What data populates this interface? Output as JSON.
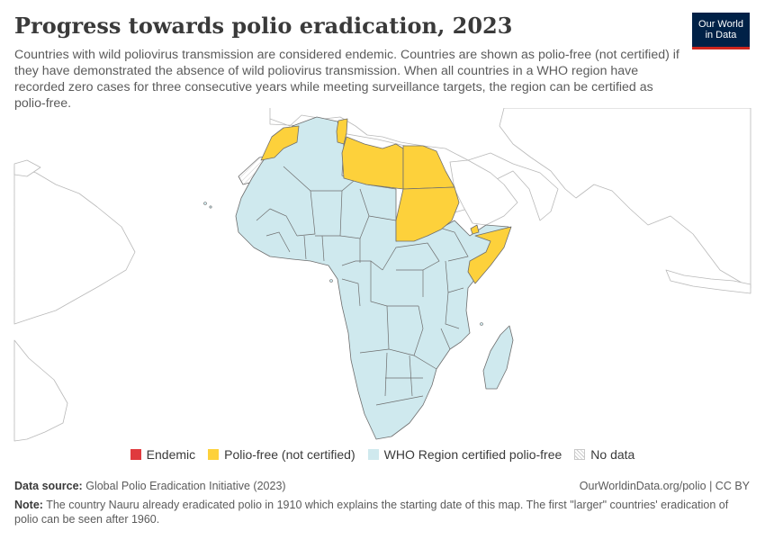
{
  "header": {
    "title": "Progress towards polio eradication, 2023",
    "subtitle": "Countries with wild poliovirus transmission are considered endemic. Countries are shown as polio-free (not certified) if they have demonstrated the absence of wild poliovirus transmission. When all countries in a WHO region have recorded zero cases for three consecutive years while meeting surveillance targets, the region can be certified as polio-free."
  },
  "logo": {
    "line1": "Our World",
    "line2": "in Data"
  },
  "colors": {
    "endemic": "#e03a3e",
    "polio_free_not_certified": "#fdd13b",
    "who_certified": "#cfe9ee",
    "no_data": "#ffffff",
    "logo_bg": "#002147",
    "logo_accent": "#ce261e"
  },
  "legend": {
    "items": [
      {
        "label": "Endemic"
      },
      {
        "label": "Polio-free (not certified)"
      },
      {
        "label": "WHO Region certified polio-free"
      },
      {
        "label": "No data"
      }
    ]
  },
  "map": {
    "polio_free_not_certified": [
      "Morocco",
      "Tunisia",
      "Libya",
      "Egypt",
      "Sudan",
      "Somalia",
      "Djibouti"
    ],
    "who_certified": [
      "Algeria",
      "Western Africa",
      "Central Africa",
      "East Africa",
      "Southern Africa",
      "Madagascar"
    ]
  },
  "footer": {
    "source_label": "Data source:",
    "source_text": "Global Polio Eradication Initiative (2023)",
    "url_text": "OurWorldinData.org/polio | CC BY",
    "note_label": "Note:",
    "note_text": "The country Nauru already eradicated polio in 1910 which explains the starting date of this map. The first \"larger\" countries' eradication of polio can be seen after 1960."
  }
}
